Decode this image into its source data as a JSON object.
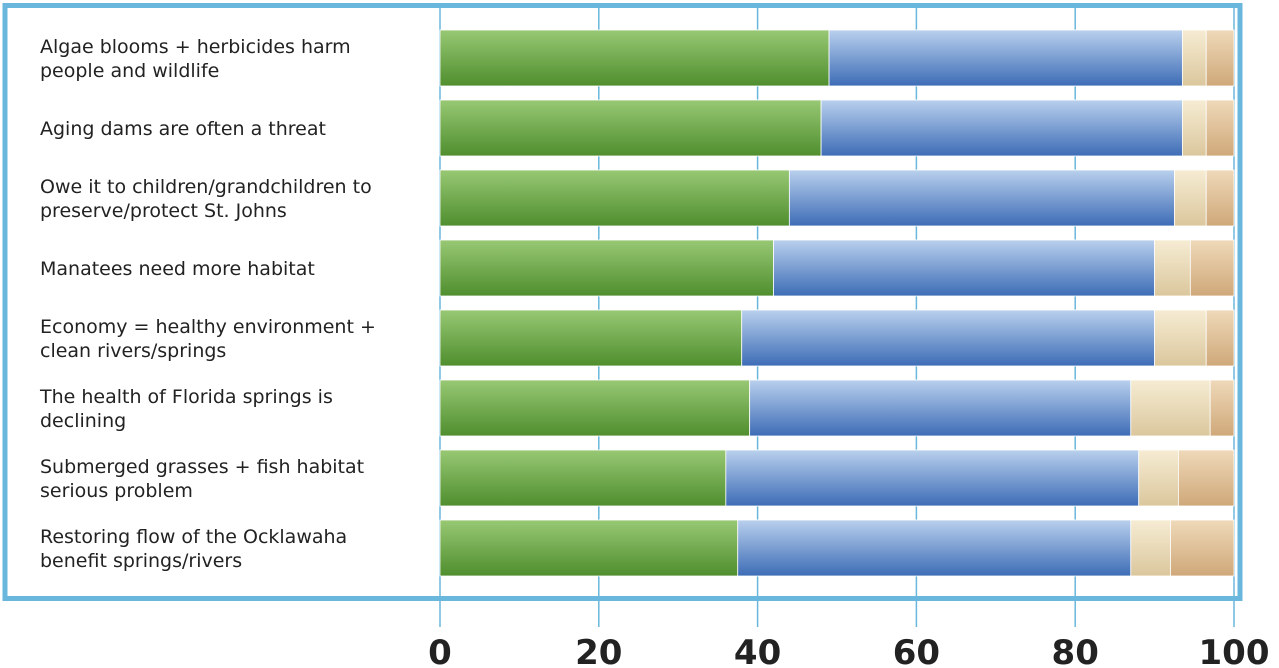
{
  "chart_data": {
    "type": "bar",
    "orientation": "horizontal",
    "stacked": true,
    "title": "",
    "xlabel": "",
    "ylabel": "",
    "xlim": [
      0,
      100
    ],
    "x_ticks": [
      "0",
      "20",
      "40",
      "60",
      "80",
      "100"
    ],
    "grid": "vertical",
    "legend": "none",
    "categories": [
      [
        "Algae blooms + herbicides harm",
        "people and wildlife"
      ],
      [
        "Aging dams are often a threat"
      ],
      [
        "Owe it to children/grandchildren to",
        "preserve/protect St. Johns"
      ],
      [
        "Manatees need more habitat"
      ],
      [
        "Economy = healthy environment +",
        "clean rivers/springs"
      ],
      [
        "The health of Florida springs is",
        "declining"
      ],
      [
        "Submerged grasses + fish habitat",
        "serious problem"
      ],
      [
        "Restoring flow of the Ocklawaha",
        "benefit springs/rivers"
      ]
    ],
    "series": [
      {
        "values": [
          49,
          48,
          44,
          42,
          38,
          39,
          36,
          37.5
        ],
        "color": "#5f9e3c"
      },
      {
        "values": [
          44.5,
          45.5,
          48.5,
          48,
          52,
          48,
          52,
          49.5
        ],
        "color": "#6d9ad0"
      },
      {
        "values": [
          3,
          3,
          4,
          4.5,
          6.5,
          10,
          5,
          5
        ],
        "color": "#ecdcb9"
      },
      {
        "values": [
          3.5,
          3.5,
          3.5,
          5.5,
          3.5,
          3,
          7,
          8
        ],
        "color": "#dfbe92"
      }
    ],
    "colors": {
      "frame": "#6ab7dd",
      "gridline": "#6ab7dd",
      "green_light": "#98c874",
      "green_dark": "#4f8e2e",
      "blue_light": "#b9d0ee",
      "blue_dark": "#3d6cb6",
      "cream_light": "#f6ecd3",
      "cream_dark": "#dbc79d",
      "tan_light": "#efd9b9",
      "tan_dark": "#cfa879",
      "text": "#222222"
    }
  }
}
